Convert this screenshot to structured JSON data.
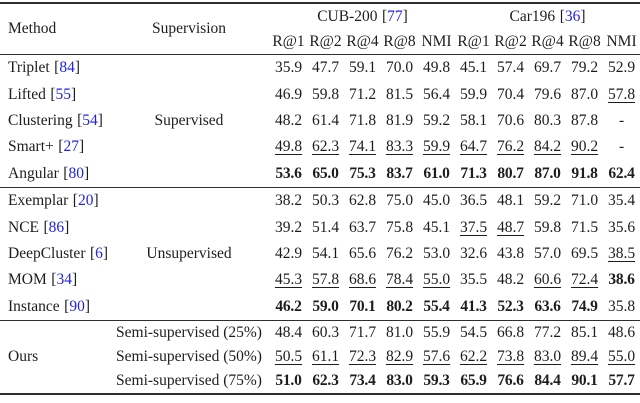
{
  "colors": {
    "citation": "#2222e6",
    "text": "#1d1d1d",
    "rule": "#2e2e2e"
  },
  "symbols": {
    "open_bracket": "[",
    "close_bracket": "]"
  },
  "table": {
    "header": {
      "method_label": "Method",
      "supervision_label": "Supervision",
      "groups": [
        {
          "name": "CUB-200",
          "cite": "77"
        },
        {
          "name": "Car196",
          "cite": "36"
        }
      ],
      "metrics": [
        "R@1",
        "R@2",
        "R@4",
        "R@8",
        "NMI"
      ]
    },
    "sections": [
      {
        "supervision": "Supervised",
        "rows": [
          {
            "method": "Triplet",
            "cite": "84",
            "values": [
              "35.9",
              "47.7",
              "59.1",
              "70.0",
              "49.8",
              "45.1",
              "57.4",
              "69.7",
              "79.2",
              "52.9"
            ],
            "styles": "pppppppppp"
          },
          {
            "method": "Lifted",
            "cite": "55",
            "values": [
              "46.9",
              "59.8",
              "71.2",
              "81.5",
              "56.4",
              "59.9",
              "70.4",
              "79.6",
              "87.0",
              "57.8"
            ],
            "styles": "pppppppppu"
          },
          {
            "method": "Clustering",
            "cite": "54",
            "values": [
              "48.2",
              "61.4",
              "71.8",
              "81.9",
              "59.2",
              "58.1",
              "70.6",
              "80.3",
              "87.8",
              "-"
            ],
            "styles": "pppppppppp"
          },
          {
            "method": "Smart+",
            "cite": "27",
            "values": [
              "49.8",
              "62.3",
              "74.1",
              "83.3",
              "59.9",
              "64.7",
              "76.2",
              "84.2",
              "90.2",
              "-"
            ],
            "styles": "uuuuuuuuup"
          },
          {
            "method": "Angular",
            "cite": "80",
            "values": [
              "53.6",
              "65.0",
              "75.3",
              "83.7",
              "61.0",
              "71.3",
              "80.7",
              "87.0",
              "91.8",
              "62.4"
            ],
            "styles": "bbbbbbbbbb"
          }
        ]
      },
      {
        "supervision": "Unsupervised",
        "rows": [
          {
            "method": "Exemplar",
            "cite": "20",
            "values": [
              "38.2",
              "50.3",
              "62.8",
              "75.0",
              "45.0",
              "36.5",
              "48.1",
              "59.2",
              "71.0",
              "35.4"
            ],
            "styles": "pppppppppp"
          },
          {
            "method": "NCE",
            "cite": "86",
            "values": [
              "39.2",
              "51.4",
              "63.7",
              "75.8",
              "45.1",
              "37.5",
              "48.7",
              "59.8",
              "71.5",
              "35.6"
            ],
            "styles": "pppppuuppp"
          },
          {
            "method": "DeepCluster",
            "cite": "6",
            "values": [
              "42.9",
              "54.1",
              "65.6",
              "76.2",
              "53.0",
              "32.6",
              "43.8",
              "57.0",
              "69.5",
              "38.5"
            ],
            "styles": "pppppppppu"
          },
          {
            "method": "MOM",
            "cite": "34",
            "values": [
              "45.3",
              "57.8",
              "68.6",
              "78.4",
              "55.0",
              "35.5",
              "48.2",
              "60.6",
              "72.4",
              "38.6"
            ],
            "styles": "uuuuuppuub"
          },
          {
            "method": "Instance",
            "cite": "90",
            "values": [
              "46.2",
              "59.0",
              "70.1",
              "80.2",
              "55.4",
              "41.3",
              "52.3",
              "63.6",
              "74.9",
              "35.8"
            ],
            "styles": "bbbbbbbbbp"
          }
        ]
      },
      {
        "method": "Ours",
        "rows": [
          {
            "supervision_label": "Semi-supervised (25%)",
            "values": [
              "48.4",
              "60.3",
              "71.7",
              "81.0",
              "55.9",
              "54.5",
              "66.8",
              "77.2",
              "85.1",
              "48.6"
            ],
            "styles": "pppppppppp"
          },
          {
            "supervision_label": "Semi-supervised (50%)",
            "values": [
              "50.5",
              "61.1",
              "72.3",
              "82.9",
              "57.6",
              "62.2",
              "73.8",
              "83.0",
              "89.4",
              "55.0"
            ],
            "styles": "uuuuuuuuuu"
          },
          {
            "supervision_label": "Semi-supervised (75%)",
            "values": [
              "51.0",
              "62.3",
              "73.4",
              "83.0",
              "59.3",
              "65.9",
              "76.6",
              "84.4",
              "90.1",
              "57.7"
            ],
            "styles": "bbbbbbbbbb"
          }
        ]
      }
    ]
  }
}
